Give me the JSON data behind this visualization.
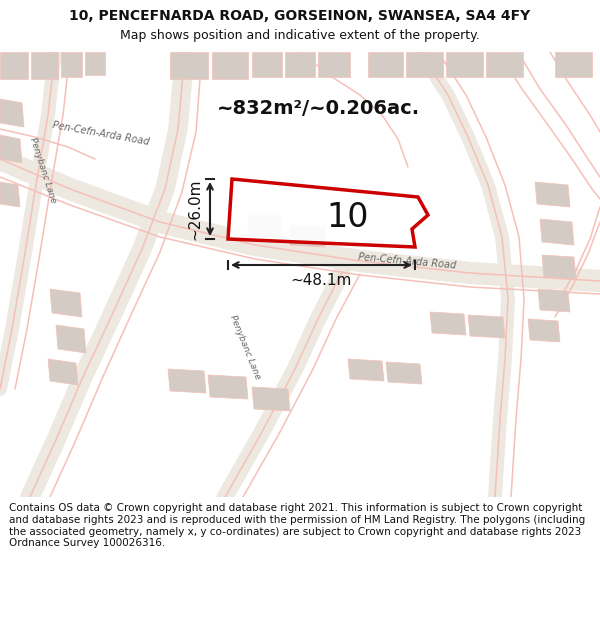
{
  "title_line1": "10, PENCEFNARDA ROAD, GORSEINON, SWANSEA, SA4 4FY",
  "title_line2": "Map shows position and indicative extent of the property.",
  "area_label": "~832m²/~0.206ac.",
  "width_label": "~48.1m",
  "height_label": "~26.0m",
  "plot_number": "10",
  "footer_text": "Contains OS data © Crown copyright and database right 2021. This information is subject to Crown copyright and database rights 2023 and is reproduced with the permission of HM Land Registry. The polygons (including the associated geometry, namely x, y co-ordinates) are subject to Crown copyright and database rights 2023 Ordnance Survey 100026316.",
  "bg_color": "#f5f5f5",
  "map_bg": "#f0efee",
  "road_fill_color": "#ede8e0",
  "road_line_color": "#f5c0b8",
  "plot_outline_color": "#cc0000",
  "plot_fill": "#ffffff",
  "building_color": "#d4ccc4",
  "dim_line_color": "#222222",
  "text_color": "#111111",
  "road_label_color": "#666666",
  "footer_fontsize": 7.5,
  "title_fontsize": 10,
  "subtitle_fontsize": 9,
  "road_label_fontsize": 7
}
